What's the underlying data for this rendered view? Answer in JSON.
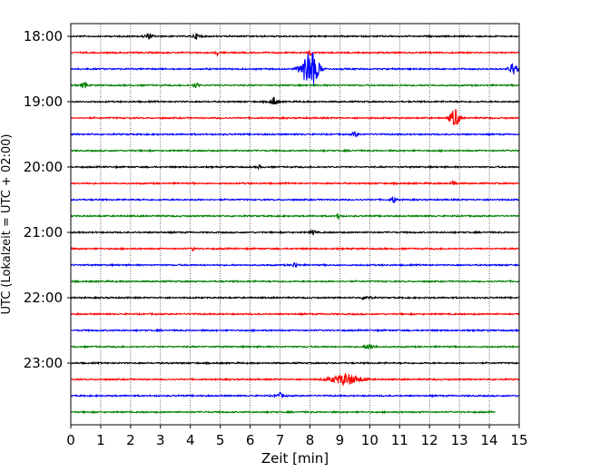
{
  "chart_data": {
    "type": "line",
    "title": "",
    "xlabel": "Zeit  [min]",
    "ylabel": "UTC (Lokalzeit = UTC + 02:00)",
    "xlim": [
      0,
      15
    ],
    "x_ticks": [
      "0",
      "1",
      "2",
      "3",
      "4",
      "5",
      "6",
      "7",
      "8",
      "9",
      "10",
      "11",
      "12",
      "13",
      "14",
      "15"
    ],
    "y_ticks": [
      "18:00",
      "19:00",
      "20:00",
      "21:00",
      "22:00",
      "23:00"
    ],
    "vertical_grid": "dotted",
    "trace_minutes": 15,
    "noise_amplitude": 0.9,
    "colors": [
      "#000000",
      "#ff0000",
      "#0000ff",
      "#008000"
    ],
    "traces": [
      {
        "start": "18:00",
        "color": "#000000",
        "end_min": 15,
        "events": [
          {
            "t": 2.6,
            "amp": 3,
            "dur": 0.3
          },
          {
            "t": 4.2,
            "amp": 3,
            "dur": 0.3
          }
        ]
      },
      {
        "start": "18:15",
        "color": "#ff0000",
        "end_min": 15,
        "events": [
          {
            "t": 4.9,
            "amp": 4,
            "dur": 0.1
          },
          {
            "t": 8.0,
            "amp": 5,
            "dur": 0.1
          }
        ]
      },
      {
        "start": "18:30",
        "color": "#0000ff",
        "end_min": 15,
        "events": [
          {
            "t": 8.0,
            "amp": 26,
            "dur": 0.6
          },
          {
            "t": 14.8,
            "amp": 8,
            "dur": 0.3
          }
        ]
      },
      {
        "start": "18:45",
        "color": "#008000",
        "end_min": 15,
        "events": [
          {
            "t": 0.45,
            "amp": 7,
            "dur": 0.15
          },
          {
            "t": 4.2,
            "amp": 3,
            "dur": 0.2
          }
        ]
      },
      {
        "start": "19:00",
        "color": "#000000",
        "end_min": 15,
        "events": [
          {
            "t": 6.8,
            "amp": 5,
            "dur": 0.3
          }
        ]
      },
      {
        "start": "19:15",
        "color": "#ff0000",
        "end_min": 15,
        "events": [
          {
            "t": 12.85,
            "amp": 12,
            "dur": 0.35
          }
        ]
      },
      {
        "start": "19:30",
        "color": "#0000ff",
        "end_min": 15,
        "events": [
          {
            "t": 9.5,
            "amp": 3,
            "dur": 0.2
          }
        ]
      },
      {
        "start": "19:45",
        "color": "#008000",
        "end_min": 15,
        "events": []
      },
      {
        "start": "20:00",
        "color": "#000000",
        "end_min": 15,
        "events": [
          {
            "t": 6.3,
            "amp": 3,
            "dur": 0.1
          }
        ]
      },
      {
        "start": "20:15",
        "color": "#ff0000",
        "end_min": 15,
        "events": [
          {
            "t": 12.8,
            "amp": 3,
            "dur": 0.2
          }
        ]
      },
      {
        "start": "20:30",
        "color": "#0000ff",
        "end_min": 15,
        "events": [
          {
            "t": 10.8,
            "amp": 4,
            "dur": 0.2
          }
        ]
      },
      {
        "start": "20:45",
        "color": "#008000",
        "end_min": 15,
        "events": [
          {
            "t": 8.95,
            "amp": 4,
            "dur": 0.15
          }
        ]
      },
      {
        "start": "21:00",
        "color": "#000000",
        "end_min": 15,
        "events": [
          {
            "t": 8.1,
            "amp": 3,
            "dur": 0.2
          }
        ]
      },
      {
        "start": "21:15",
        "color": "#ff0000",
        "end_min": 15,
        "events": [
          {
            "t": 4.1,
            "amp": 3,
            "dur": 0.1
          }
        ]
      },
      {
        "start": "21:30",
        "color": "#0000ff",
        "end_min": 15,
        "events": [
          {
            "t": 7.5,
            "amp": 3,
            "dur": 0.2
          }
        ]
      },
      {
        "start": "21:45",
        "color": "#008000",
        "end_min": 15,
        "events": []
      },
      {
        "start": "22:00",
        "color": "#000000",
        "end_min": 15,
        "events": [
          {
            "t": 9.9,
            "amp": 3,
            "dur": 0.3
          }
        ]
      },
      {
        "start": "22:15",
        "color": "#ff0000",
        "end_min": 15,
        "events": []
      },
      {
        "start": "22:30",
        "color": "#0000ff",
        "end_min": 15,
        "events": []
      },
      {
        "start": "22:45",
        "color": "#008000",
        "end_min": 15,
        "events": [
          {
            "t": 10.0,
            "amp": 3,
            "dur": 0.4
          }
        ]
      },
      {
        "start": "23:00",
        "color": "#000000",
        "end_min": 15,
        "events": []
      },
      {
        "start": "23:15",
        "color": "#ff0000",
        "end_min": 15,
        "events": [
          {
            "t": 9.2,
            "amp": 7,
            "dur": 1.1
          }
        ]
      },
      {
        "start": "23:30",
        "color": "#0000ff",
        "end_min": 15,
        "events": [
          {
            "t": 7.0,
            "amp": 3,
            "dur": 0.3
          }
        ]
      },
      {
        "start": "23:45",
        "color": "#008000",
        "end_min": 14.2,
        "events": []
      }
    ]
  }
}
